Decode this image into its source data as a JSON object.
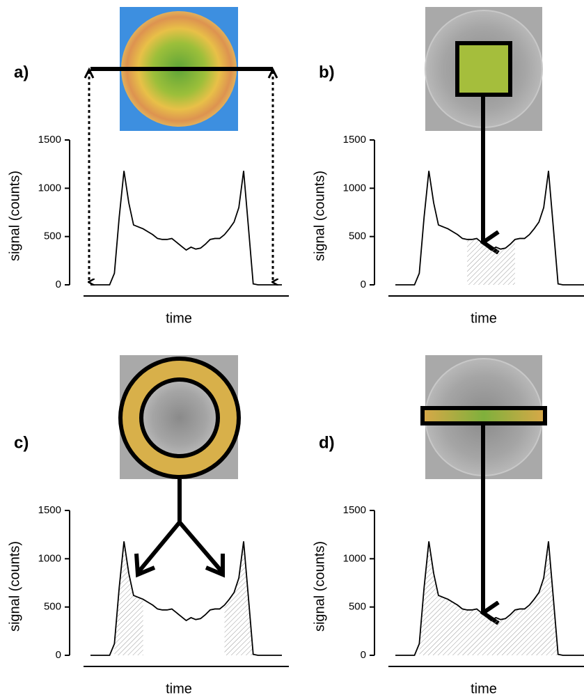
{
  "chart_data": [
    {
      "type": "line",
      "label": "a)",
      "ylabel": "signal (counts)",
      "xlabel": "time",
      "color": "#000000",
      "x": [
        0,
        1,
        2,
        3,
        4,
        5,
        6,
        7,
        8,
        9,
        10,
        11,
        12,
        13,
        14,
        15,
        16,
        17,
        18,
        19,
        20,
        21,
        22,
        23,
        24,
        25,
        26,
        27,
        28,
        29,
        30,
        31,
        32,
        33,
        34,
        35,
        36,
        37,
        38,
        39,
        40
      ],
      "values": [
        0,
        0,
        0,
        0,
        0,
        120,
        700,
        1180,
        850,
        620,
        600,
        580,
        550,
        520,
        480,
        470,
        470,
        480,
        440,
        400,
        360,
        390,
        370,
        380,
        420,
        470,
        480,
        480,
        520,
        580,
        650,
        800,
        1180,
        600,
        10,
        0,
        0,
        0,
        0,
        0,
        0
      ],
      "xlim": [
        0,
        40
      ],
      "ylim": [
        0,
        1500
      ],
      "yticks": [
        0,
        500,
        1000,
        1500
      ]
    },
    {
      "type": "line",
      "label": "b)",
      "ylabel": "signal (counts)",
      "xlabel": "time",
      "color": "#000000",
      "x": [
        0,
        1,
        2,
        3,
        4,
        5,
        6,
        7,
        8,
        9,
        10,
        11,
        12,
        13,
        14,
        15,
        16,
        17,
        18,
        19,
        20,
        21,
        22,
        23,
        24,
        25,
        26,
        27,
        28,
        29,
        30,
        31,
        32,
        33,
        34,
        35,
        36,
        37,
        38,
        39,
        40
      ],
      "values": [
        0,
        0,
        0,
        0,
        0,
        120,
        700,
        1180,
        850,
        620,
        600,
        580,
        550,
        520,
        480,
        470,
        470,
        480,
        440,
        400,
        360,
        390,
        370,
        380,
        420,
        470,
        480,
        480,
        520,
        580,
        650,
        800,
        1180,
        600,
        10,
        0,
        0,
        0,
        0,
        0,
        0
      ],
      "xlim": [
        0,
        40
      ],
      "ylim": [
        0,
        1500
      ],
      "yticks": [
        0,
        500,
        1000,
        1500
      ],
      "shaded": [
        [
          15,
          25
        ]
      ]
    },
    {
      "type": "line",
      "label": "c)",
      "ylabel": "signal (counts)",
      "xlabel": "time",
      "color": "#000000",
      "x": [
        0,
        1,
        2,
        3,
        4,
        5,
        6,
        7,
        8,
        9,
        10,
        11,
        12,
        13,
        14,
        15,
        16,
        17,
        18,
        19,
        20,
        21,
        22,
        23,
        24,
        25,
        26,
        27,
        28,
        29,
        30,
        31,
        32,
        33,
        34,
        35,
        36,
        37,
        38,
        39,
        40
      ],
      "values": [
        0,
        0,
        0,
        0,
        0,
        120,
        700,
        1180,
        850,
        620,
        600,
        580,
        550,
        520,
        480,
        470,
        470,
        480,
        440,
        400,
        360,
        390,
        370,
        380,
        420,
        470,
        480,
        480,
        520,
        580,
        650,
        800,
        1180,
        600,
        10,
        0,
        0,
        0,
        0,
        0,
        0
      ],
      "xlim": [
        0,
        40
      ],
      "ylim": [
        0,
        1500
      ],
      "yticks": [
        0,
        500,
        1000,
        1500
      ],
      "shaded": [
        [
          5,
          11
        ],
        [
          28,
          34
        ]
      ]
    },
    {
      "type": "line",
      "label": "d)",
      "ylabel": "signal (counts)",
      "xlabel": "time",
      "color": "#000000",
      "x": [
        0,
        1,
        2,
        3,
        4,
        5,
        6,
        7,
        8,
        9,
        10,
        11,
        12,
        13,
        14,
        15,
        16,
        17,
        18,
        19,
        20,
        21,
        22,
        23,
        24,
        25,
        26,
        27,
        28,
        29,
        30,
        31,
        32,
        33,
        34,
        35,
        36,
        37,
        38,
        39,
        40
      ],
      "values": [
        0,
        0,
        0,
        0,
        0,
        120,
        700,
        1180,
        850,
        620,
        600,
        580,
        550,
        520,
        480,
        470,
        470,
        480,
        440,
        400,
        360,
        390,
        370,
        380,
        420,
        470,
        480,
        480,
        520,
        580,
        650,
        800,
        1180,
        600,
        10,
        0,
        0,
        0,
        0,
        0,
        0
      ],
      "xlim": [
        0,
        40
      ],
      "ylim": [
        0,
        1500
      ],
      "yticks": [
        0,
        500,
        1000,
        1500
      ],
      "shaded": [
        [
          5,
          34
        ]
      ]
    }
  ]
}
